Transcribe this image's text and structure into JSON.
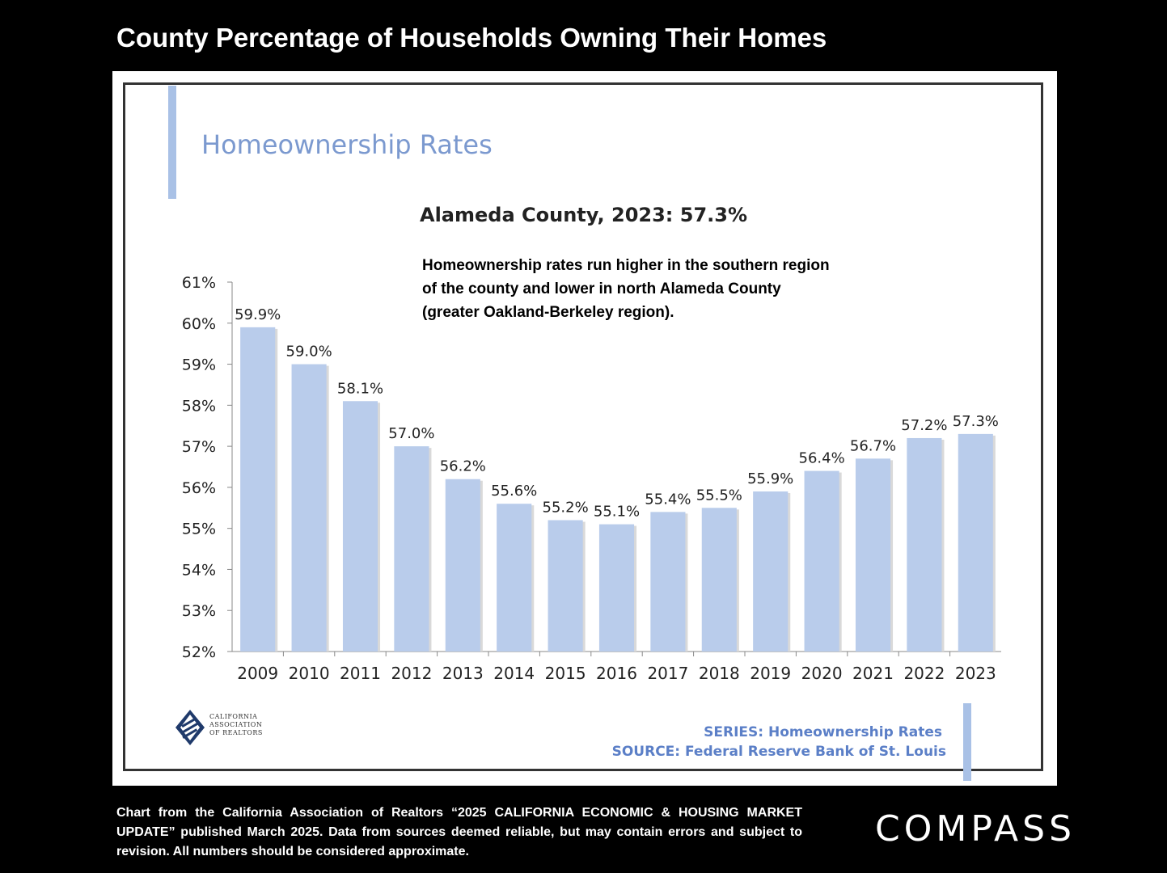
{
  "page": {
    "title": "County Percentage of Households Owning Their Homes",
    "footnote": "Chart from the California Association of Realtors “2025 CALIFORNIA ECONOMIC & HOUSING MARKET UPDATE” published March 2025. Data from sources deemed reliable, but may contain errors and subject to revision. All numbers should be considered approximate.",
    "brand": "COMPASS"
  },
  "panel": {
    "heading": "Homeownership Rates",
    "subheading": "Alameda County, 2023: 57.3%",
    "note": "Homeownership rates run higher in the southern region of the county and lower in north Alameda County (greater Oakland-Berkeley region).",
    "logo_lines": [
      "CALIFORNIA",
      "ASSOCIATION",
      "OF REALTORS"
    ],
    "series_line": "SERIES: Homeownership Rates",
    "source_line": "SOURCE: Federal Reserve Bank of St. Louis"
  },
  "colors": {
    "bar": "#b9cceb",
    "heading": "#7b99cf",
    "source_text": "#5b7fc7"
  },
  "chart_data": {
    "type": "bar",
    "title": "Homeownership Rates",
    "categories": [
      "2009",
      "2010",
      "2011",
      "2012",
      "2013",
      "2014",
      "2015",
      "2016",
      "2017",
      "2018",
      "2019",
      "2020",
      "2021",
      "2022",
      "2023"
    ],
    "values": [
      59.9,
      59.0,
      58.1,
      57.0,
      56.2,
      55.6,
      55.2,
      55.1,
      55.4,
      55.5,
      55.9,
      56.4,
      56.7,
      57.2,
      57.3
    ],
    "data_labels": [
      "59.9%",
      "59.0%",
      "58.1%",
      "57.0%",
      "56.2%",
      "55.6%",
      "55.2%",
      "55.1%",
      "55.4%",
      "55.5%",
      "55.9%",
      "56.4%",
      "56.7%",
      "57.2%",
      "57.3%"
    ],
    "y_ticks": [
      "52%",
      "53%",
      "54%",
      "55%",
      "56%",
      "57%",
      "58%",
      "59%",
      "60%",
      "61%"
    ],
    "ylim": [
      52,
      61
    ],
    "xlabel": "",
    "ylabel": "",
    "grid": false,
    "legend": "none"
  }
}
